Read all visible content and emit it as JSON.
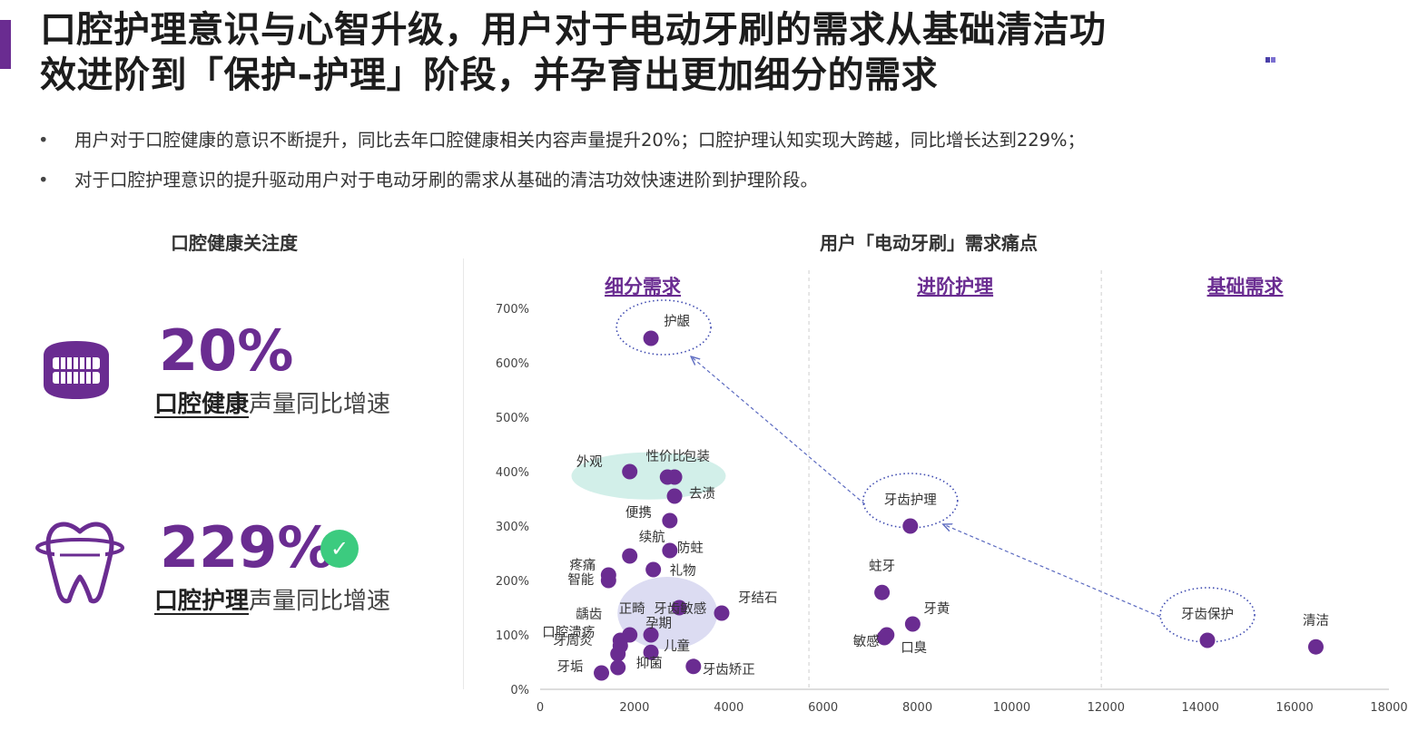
{
  "header": {
    "title_line1": "口腔护理意识与心智升级，用户对于电动牙刷的需求从基础清洁功",
    "title_line2": "效进阶到「保护-护理」阶段，并孕育出更加细分的需求"
  },
  "bullets": [
    "用户对于口腔健康的意识不断提升，同比去年口腔健康相关内容声量提升20%；口腔护理认知实现大跨越，同比增长达到229%；",
    "对于口腔护理意识的提升驱动用户对于电动牙刷的需求从基础的清洁功效快速进阶到护理阶段。"
  ],
  "left_panel": {
    "title": "口腔健康关注度",
    "stats": [
      {
        "value": "20%",
        "label_highlight": "口腔健康",
        "label_rest": "声量同比增速",
        "icon": "teeth-icon"
      },
      {
        "value": "229%",
        "label_highlight": "口腔护理",
        "label_rest": "声量同比增速",
        "icon": "tooth-care-icon",
        "badge": "check-icon"
      }
    ]
  },
  "chart_panel": {
    "title": "用户「电动牙刷」需求痛点"
  },
  "colors": {
    "accent": "#6a2c91",
    "point": "#6a2c91",
    "teal_highlight": "#d2efe9",
    "lavender_highlight": "#dcdcf2",
    "check": "#3ccb7f"
  },
  "chart_data": {
    "type": "scatter",
    "title": "用户「电动牙刷」需求痛点",
    "xlabel": "",
    "ylabel": "",
    "xlim": [
      0,
      18000
    ],
    "ylim": [
      0,
      700
    ],
    "xticks": [
      0,
      2000,
      4000,
      6000,
      8000,
      10000,
      12000,
      14000,
      16000,
      18000
    ],
    "yticks": [
      0,
      100,
      200,
      300,
      400,
      500,
      600,
      700
    ],
    "ytick_labels": [
      "0%",
      "100%",
      "200%",
      "300%",
      "400%",
      "500%",
      "600%",
      "700%"
    ],
    "regions": [
      {
        "label": "细分需求",
        "x_range": [
          0,
          5700
        ]
      },
      {
        "label": "进阶护理",
        "x_range": [
          5700,
          11900
        ]
      },
      {
        "label": "基础需求",
        "x_range": [
          11900,
          18000
        ]
      }
    ],
    "points": [
      {
        "label": "护龈",
        "x": 2350,
        "y": 645
      },
      {
        "label": "外观",
        "x": 1900,
        "y": 400
      },
      {
        "label": "性价比",
        "x": 2700,
        "y": 390
      },
      {
        "label": "包装",
        "x": 2850,
        "y": 390
      },
      {
        "label": "去渍",
        "x": 2850,
        "y": 355
      },
      {
        "label": "便携",
        "x": 2750,
        "y": 310
      },
      {
        "label": "续航",
        "x": 1900,
        "y": 245
      },
      {
        "label": "防蛀",
        "x": 2750,
        "y": 255
      },
      {
        "label": "疼痛",
        "x": 1450,
        "y": 210
      },
      {
        "label": "礼物",
        "x": 2400,
        "y": 220
      },
      {
        "label": "智能",
        "x": 1450,
        "y": 200
      },
      {
        "label": "牙齿敏感",
        "x": 2950,
        "y": 150
      },
      {
        "label": "牙结石",
        "x": 3850,
        "y": 140
      },
      {
        "label": "龋齿",
        "x": 1700,
        "y": 90
      },
      {
        "label": "正畸",
        "x": 1900,
        "y": 100
      },
      {
        "label": "孕期",
        "x": 2350,
        "y": 100
      },
      {
        "label": "口腔溃疡",
        "x": 1700,
        "y": 80
      },
      {
        "label": "牙周炎",
        "x": 1650,
        "y": 65
      },
      {
        "label": "儿童",
        "x": 2350,
        "y": 68
      },
      {
        "label": "抑菌",
        "x": 1650,
        "y": 40
      },
      {
        "label": "牙垢",
        "x": 1300,
        "y": 30
      },
      {
        "label": "牙齿矫正",
        "x": 3250,
        "y": 42
      },
      {
        "label": "牙齿护理",
        "x": 7850,
        "y": 300
      },
      {
        "label": "蛀牙",
        "x": 7250,
        "y": 178
      },
      {
        "label": "牙黄",
        "x": 7900,
        "y": 120
      },
      {
        "label": "敏感",
        "x": 7350,
        "y": 100
      },
      {
        "label": "口臭",
        "x": 7300,
        "y": 95
      },
      {
        "label": "牙齿保护",
        "x": 14150,
        "y": 90
      },
      {
        "label": "清洁",
        "x": 16450,
        "y": 78
      }
    ],
    "transition_arrows": [
      {
        "from": "牙齿保护",
        "to": "牙齿护理"
      },
      {
        "from": "牙齿护理",
        "to": "护龈"
      }
    ],
    "highlighted": [
      "护龈",
      "牙齿护理",
      "牙齿保护"
    ]
  }
}
